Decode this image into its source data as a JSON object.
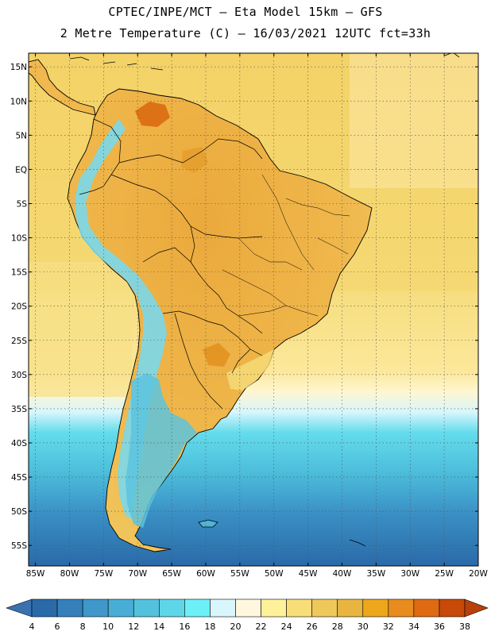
{
  "header": {
    "line1": "CPTEC/INPE/MCT –  Eta Model 15km – GFS",
    "line2": "2 Metre Temperature (C) – 16/03/2021 12UTC fct=33h"
  },
  "axes": {
    "lat_labels": [
      "15N",
      "10N",
      "5N",
      "EQ",
      "5S",
      "10S",
      "15S",
      "20S",
      "25S",
      "30S",
      "35S",
      "40S",
      "45S",
      "50S",
      "55S"
    ],
    "lat_values": [
      15,
      10,
      5,
      0,
      -5,
      -10,
      -15,
      -20,
      -25,
      -30,
      -35,
      -40,
      -45,
      -50,
      -55
    ],
    "lon_labels": [
      "85W",
      "80W",
      "75W",
      "70W",
      "65W",
      "60W",
      "55W",
      "50W",
      "45W",
      "40W",
      "35W",
      "30W",
      "25W",
      "20W"
    ],
    "lon_values": [
      -85,
      -80,
      -75,
      -70,
      -65,
      -60,
      -55,
      -50,
      -45,
      -40,
      -35,
      -30,
      -25,
      -20
    ],
    "lon_range": [
      -86,
      -20
    ],
    "lat_range": [
      -58,
      17
    ],
    "grid": "dotted"
  },
  "colorbar": {
    "labels": [
      "4",
      "6",
      "8",
      "10",
      "12",
      "14",
      "16",
      "18",
      "20",
      "22",
      "24",
      "26",
      "28",
      "30",
      "32",
      "34",
      "36",
      "38"
    ],
    "colors": [
      "#2a6aa8",
      "#3580bb",
      "#3f98c9",
      "#49aed6",
      "#53c2de",
      "#5dd6e8",
      "#6cf0f8",
      "#d8f6fc",
      "#fff8de",
      "#fff19a",
      "#f8de78",
      "#efc85c",
      "#e8b640",
      "#eea71a",
      "#e88c1e",
      "#e06a12",
      "#c84a08"
    ],
    "low_arrow": "#3a72b0",
    "high_arrow": "#b8400a"
  }
}
